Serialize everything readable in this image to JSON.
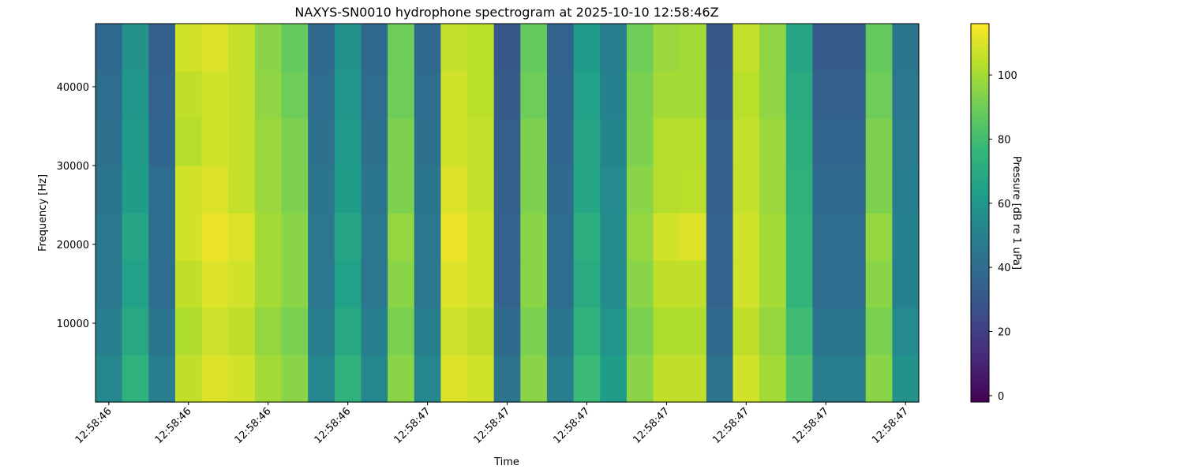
{
  "chart_data": {
    "type": "spectrogram",
    "title": "NAXYS-SN0010 hydrophone spectrogram at 2025-10-10 12:58:46Z",
    "x_label": "Time",
    "y_label": "Frequency [Hz]",
    "colorbar_label": "Pressure [dB re 1 uPa]",
    "colormap": "viridis",
    "categories": [
      "12:58:46",
      null,
      null,
      "12:58:46",
      null,
      null,
      "12:58:46",
      null,
      null,
      "12:58:46",
      null,
      null,
      "12:58:47",
      null,
      null,
      "12:58:47",
      null,
      null,
      "12:58:47",
      null,
      null,
      "12:58:47",
      null,
      null,
      "12:58:47",
      null,
      null,
      "12:58:47",
      null,
      null,
      "12:58:47"
    ],
    "ybins": [
      0,
      6000,
      12000,
      18000,
      24000,
      30000,
      36000,
      42000,
      48000
    ],
    "ylim": [
      0,
      48000
    ],
    "yticks": [
      10000,
      20000,
      30000,
      40000
    ],
    "zlim": [
      -2,
      116
    ],
    "zticks": [
      0,
      20,
      40,
      60,
      80,
      100
    ],
    "z": [
      [
        53,
        73,
        48,
        105,
        110,
        108,
        100,
        95,
        53,
        73,
        53,
        95,
        53,
        110,
        108,
        43,
        95,
        48,
        78,
        63,
        95,
        105,
        105,
        43,
        108,
        100,
        83,
        48,
        48,
        95,
        58
      ],
      [
        49,
        69,
        44,
        102,
        107,
        105,
        97,
        92,
        49,
        69,
        49,
        92,
        49,
        107,
        105,
        39,
        92,
        44,
        74,
        59,
        92,
        102,
        102,
        39,
        105,
        97,
        79,
        44,
        44,
        92,
        54
      ],
      [
        45,
        65,
        40,
        105,
        110,
        108,
        100,
        95,
        45,
        65,
        45,
        95,
        45,
        110,
        108,
        35,
        95,
        40,
        70,
        55,
        95,
        105,
        105,
        35,
        108,
        100,
        75,
        40,
        40,
        95,
        50
      ],
      [
        45,
        67,
        40,
        108,
        113,
        110,
        100,
        95,
        45,
        67,
        45,
        97,
        45,
        113,
        108,
        35,
        95,
        40,
        72,
        55,
        97,
        108,
        110,
        35,
        108,
        100,
        75,
        40,
        40,
        97,
        50
      ],
      [
        44,
        63,
        40,
        108,
        110,
        106,
        98,
        93,
        44,
        63,
        44,
        93,
        44,
        110,
        106,
        34,
        93,
        39,
        68,
        54,
        95,
        103,
        104,
        34,
        106,
        98,
        73,
        38,
        38,
        93,
        48
      ],
      [
        42,
        62,
        37,
        103,
        108,
        106,
        98,
        93,
        42,
        62,
        42,
        93,
        42,
        108,
        106,
        33,
        93,
        37,
        67,
        52,
        93,
        103,
        103,
        33,
        106,
        98,
        72,
        36,
        36,
        93,
        47
      ],
      [
        40,
        60,
        35,
        105,
        108,
        106,
        96,
        90,
        40,
        60,
        40,
        90,
        40,
        108,
        104,
        32,
        90,
        36,
        65,
        50,
        92,
        100,
        100,
        32,
        104,
        96,
        70,
        34,
        34,
        90,
        45
      ],
      [
        38,
        58,
        34,
        108,
        110,
        106,
        95,
        88,
        38,
        58,
        38,
        90,
        38,
        106,
        104,
        30,
        88,
        35,
        62,
        48,
        90,
        98,
        100,
        30,
        106,
        96,
        68,
        32,
        32,
        88,
        44
      ]
    ]
  }
}
